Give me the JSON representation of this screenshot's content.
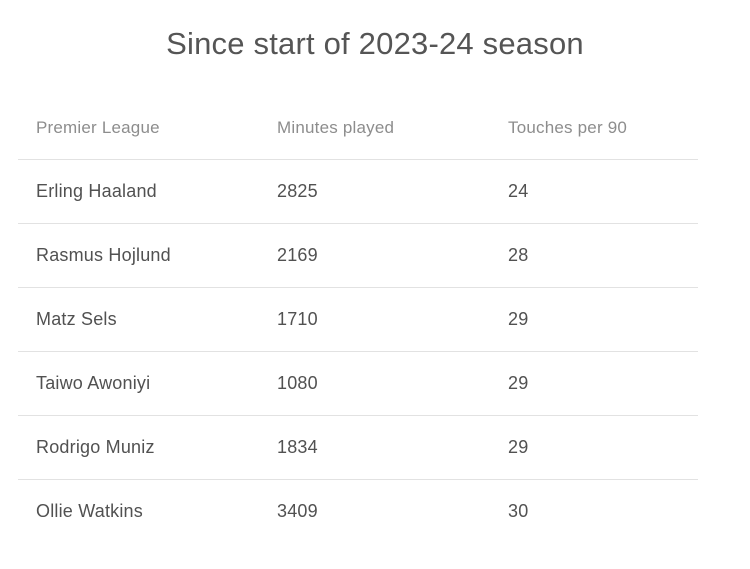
{
  "title": "Since start of 2023-24 season",
  "table": {
    "columns": [
      "Premier League",
      "Minutes played",
      "Touches per 90"
    ],
    "rows": [
      {
        "player": "Erling Haaland",
        "minutes": "2825",
        "touches": "24"
      },
      {
        "player": "Rasmus Hojlund",
        "minutes": "2169",
        "touches": "28"
      },
      {
        "player": "Matz Sels",
        "minutes": "1710",
        "touches": "29"
      },
      {
        "player": "Taiwo Awoniyi",
        "minutes": "1080",
        "touches": "29"
      },
      {
        "player": "Rodrigo Muniz",
        "minutes": "1834",
        "touches": "29"
      },
      {
        "player": "Ollie Watkins",
        "minutes": "3409",
        "touches": "30"
      }
    ]
  },
  "chart_data": {
    "type": "table",
    "title": "Since start of 2023-24 season",
    "columns": [
      "Premier League",
      "Minutes played",
      "Touches per 90"
    ],
    "rows": [
      [
        "Erling Haaland",
        2825,
        24
      ],
      [
        "Rasmus Hojlund",
        2169,
        28
      ],
      [
        "Matz Sels",
        1710,
        29
      ],
      [
        "Taiwo Awoniyi",
        1080,
        29
      ],
      [
        "Rodrigo Muniz",
        1834,
        29
      ],
      [
        "Ollie Watkins",
        3409,
        30
      ]
    ],
    "layout": {
      "grid": "horizontal-dividers-only",
      "legend": "none"
    }
  },
  "colors": {
    "background": "#ffffff",
    "title_text": "#555555",
    "header_text": "#8d8d8d",
    "cell_text": "#515151",
    "divider": "#e2e2e2"
  }
}
